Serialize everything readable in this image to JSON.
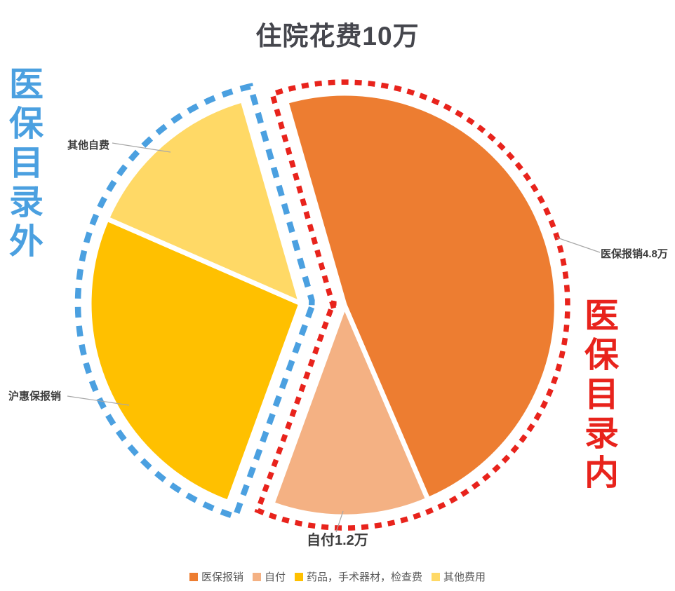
{
  "page": {
    "background": "#ffffff"
  },
  "chart_data": {
    "type": "pie",
    "title": "住院花费10万",
    "total_value": 10,
    "unit": "万",
    "start_angle_deg": -106,
    "legend_position": "bottom",
    "slices": [
      {
        "label": "医保报销",
        "value": 4.8,
        "value_label": "医保报销4.8万",
        "legend_label": "医保报销",
        "color": "#ED7D31",
        "group": "医保目录内"
      },
      {
        "label": "自付",
        "value": 1.2,
        "value_label": "自付1.2万",
        "legend_label": "自付",
        "color": "#F4B183",
        "group": "医保目录内"
      },
      {
        "label": "沪惠保报销",
        "value": 2.6,
        "value_label": "沪惠保报销",
        "legend_label": "药品，手术器材，检查费",
        "color": "#FFC000",
        "group": "医保目录外"
      },
      {
        "label": "其他自费",
        "value": 1.4,
        "value_label": "其他自费",
        "legend_label": "其他费用",
        "color": "#FFD966",
        "group": "医保目录外"
      }
    ],
    "groups": [
      {
        "name": "医保目录内",
        "outline_color": "#E8231C",
        "side": "inside-catalog"
      },
      {
        "name": "医保目录外",
        "outline_color": "#4BA0E0",
        "side": "outside-catalog"
      }
    ]
  },
  "annotations": {
    "right_label": {
      "text": "医保目录内",
      "color": "#E8231C"
    },
    "left_label": {
      "text": "医保目录外",
      "color": "#4BA0E0"
    },
    "title_color": "#45464d",
    "leader_line_color": "#a8a8a8"
  }
}
